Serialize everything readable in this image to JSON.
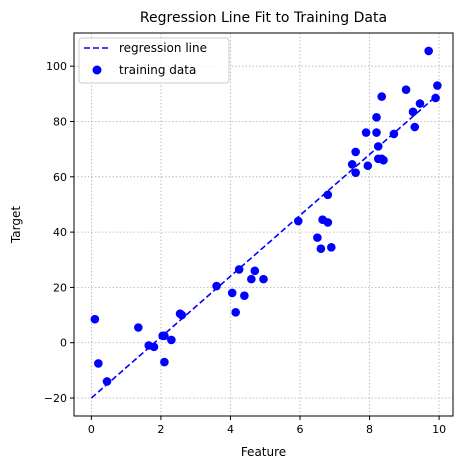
{
  "chart_data": {
    "type": "scatter",
    "title": "Regression Line Fit to Training Data",
    "xlabel": "Feature",
    "ylabel": "Target",
    "xlim": [
      -0.5,
      10.4
    ],
    "ylim": [
      -26.5,
      112
    ],
    "xticks": [
      0,
      2,
      4,
      6,
      8,
      10
    ],
    "yticks": [
      -20,
      0,
      20,
      40,
      60,
      80,
      100
    ],
    "grid": true,
    "legend_position": "upper left",
    "colors": {
      "series": "#0000ff",
      "grid": "#b0b0b0"
    },
    "series": [
      {
        "name": "regression line",
        "style": "dashed-line",
        "x": [
          0.0,
          9.9
        ],
        "y": [
          -20.0,
          89.0
        ]
      },
      {
        "name": "training data",
        "style": "markers",
        "x": [
          0.1,
          0.2,
          0.45,
          1.35,
          1.65,
          1.8,
          2.05,
          2.1,
          2.1,
          2.3,
          2.55,
          2.6,
          3.6,
          4.05,
          4.15,
          4.25,
          4.4,
          4.6,
          4.7,
          4.95,
          5.95,
          6.5,
          6.6,
          6.65,
          6.8,
          6.8,
          6.9,
          7.5,
          7.6,
          7.6,
          7.9,
          7.95,
          8.2,
          8.2,
          8.25,
          8.25,
          8.35,
          8.35,
          8.4,
          8.7,
          9.05,
          9.25,
          9.3,
          9.45,
          9.7,
          9.9,
          9.95
        ],
        "y": [
          8.5,
          -7.5,
          -14,
          5.5,
          -1,
          -1.5,
          2.5,
          2.5,
          -7,
          1,
          10.5,
          10,
          20.5,
          18,
          11,
          26.5,
          17,
          23,
          26,
          23,
          44,
          38,
          34,
          44.5,
          43.5,
          53.5,
          34.5,
          64.5,
          61.5,
          69,
          76,
          64,
          81.5,
          76,
          71,
          66.5,
          89,
          66.5,
          66,
          75.5,
          91.5,
          83.5,
          78,
          86.5,
          105.5,
          88.5,
          93
        ]
      }
    ]
  }
}
